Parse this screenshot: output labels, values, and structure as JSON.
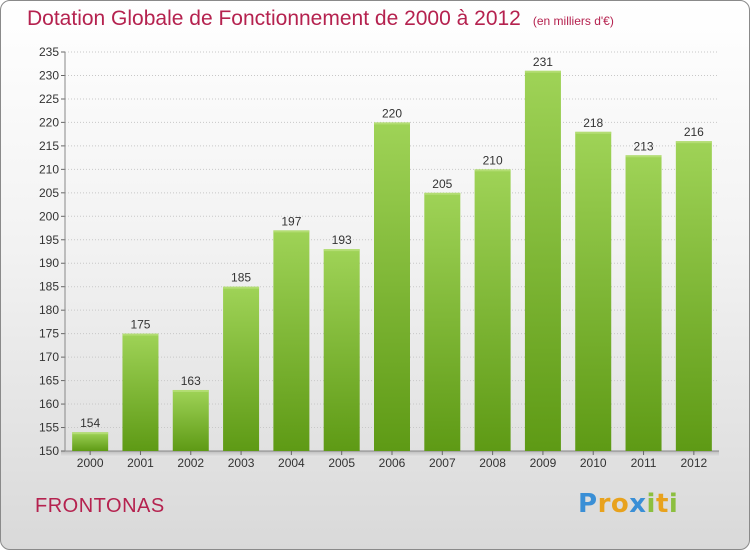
{
  "title": "Dotation Globale de Fonctionnement de 2000 à 2012",
  "subtitle": "(en milliers d'€)",
  "city": "FRONTONAS",
  "logo": {
    "text": "Proxiti",
    "letters": [
      {
        "ch": "P",
        "color": "#3a8fd6"
      },
      {
        "ch": "r",
        "color": "#e8a21d"
      },
      {
        "ch": "o",
        "color": "#e8a21d"
      },
      {
        "ch": "x",
        "color": "#3a8fd6"
      },
      {
        "ch": "i",
        "color": "#8cbf3f"
      },
      {
        "ch": "t",
        "color": "#e8a21d"
      },
      {
        "ch": "i",
        "color": "#8cbf3f"
      }
    ]
  },
  "colors": {
    "title": "#b5224f",
    "bar_top": "#9fd357",
    "bar_bottom": "#5e9a15",
    "grid": "#c8c8c8"
  },
  "chart_data": {
    "type": "bar",
    "title": "Dotation Globale de Fonctionnement de 2000 à 2012",
    "subtitle": "(en milliers d'€)",
    "xlabel": "",
    "ylabel": "",
    "categories": [
      "2000",
      "2001",
      "2002",
      "2003",
      "2004",
      "2005",
      "2006",
      "2007",
      "2008",
      "2009",
      "2010",
      "2011",
      "2012"
    ],
    "values": [
      154,
      175,
      163,
      185,
      197,
      193,
      220,
      205,
      210,
      231,
      218,
      213,
      216
    ],
    "ylim": [
      150,
      235
    ],
    "yticks": [
      150,
      155,
      160,
      165,
      170,
      175,
      180,
      185,
      190,
      195,
      200,
      205,
      210,
      215,
      220,
      225,
      230,
      235
    ],
    "grid": true,
    "data_labels": true
  }
}
